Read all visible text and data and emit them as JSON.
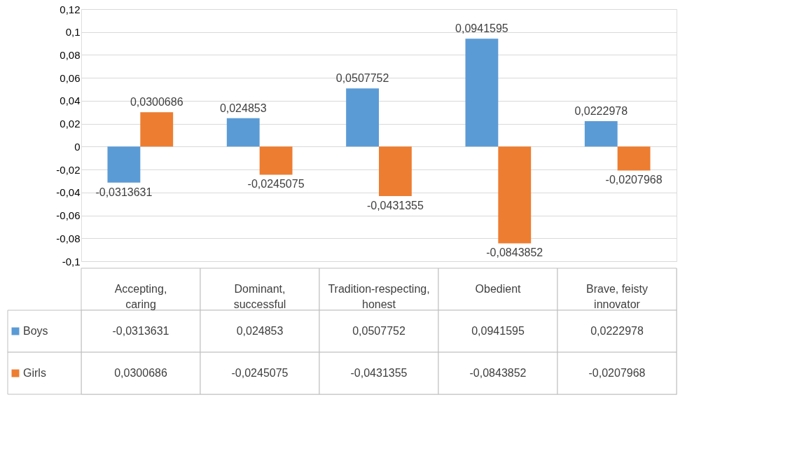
{
  "chart_data": {
    "type": "bar",
    "categories": [
      "Accepting, caring",
      "Dominant, successful",
      "Tradition-respecting, honest",
      "Obedient",
      "Brave, feisty innovator"
    ],
    "series": [
      {
        "name": "Boys",
        "color": "#5b9bd5",
        "values": [
          -0.0313631,
          0.024853,
          0.0507752,
          0.0941595,
          0.0222978
        ],
        "value_labels": [
          "-0,0313631",
          "0,024853",
          "0,0507752",
          "0,0941595",
          "0,0222978"
        ]
      },
      {
        "name": "Girls",
        "color": "#ed7d31",
        "values": [
          0.0300686,
          -0.0245075,
          -0.0431355,
          -0.0843852,
          -0.0207968
        ],
        "value_labels": [
          "0,0300686",
          "-0,0245075",
          "-0,0431355",
          "-0,0843852",
          "-0,0207968"
        ]
      }
    ],
    "ylim": [
      -0.1,
      0.12
    ],
    "yticks": [
      {
        "value": -0.1,
        "label": "-0,1"
      },
      {
        "value": -0.08,
        "label": "-0,08"
      },
      {
        "value": -0.06,
        "label": "-0,06"
      },
      {
        "value": -0.04,
        "label": "-0,04"
      },
      {
        "value": -0.02,
        "label": "-0,02"
      },
      0,
      {
        "value": 0.02,
        "label": "0,02"
      },
      {
        "value": 0.04,
        "label": "0,04"
      },
      {
        "value": 0.06,
        "label": "0,06"
      },
      {
        "value": 0.08,
        "label": "0,08"
      },
      {
        "value": 0.1,
        "label": "0,1"
      },
      {
        "value": 0.12,
        "label": "0,12"
      }
    ],
    "grid": "y",
    "legend": "bottom"
  }
}
